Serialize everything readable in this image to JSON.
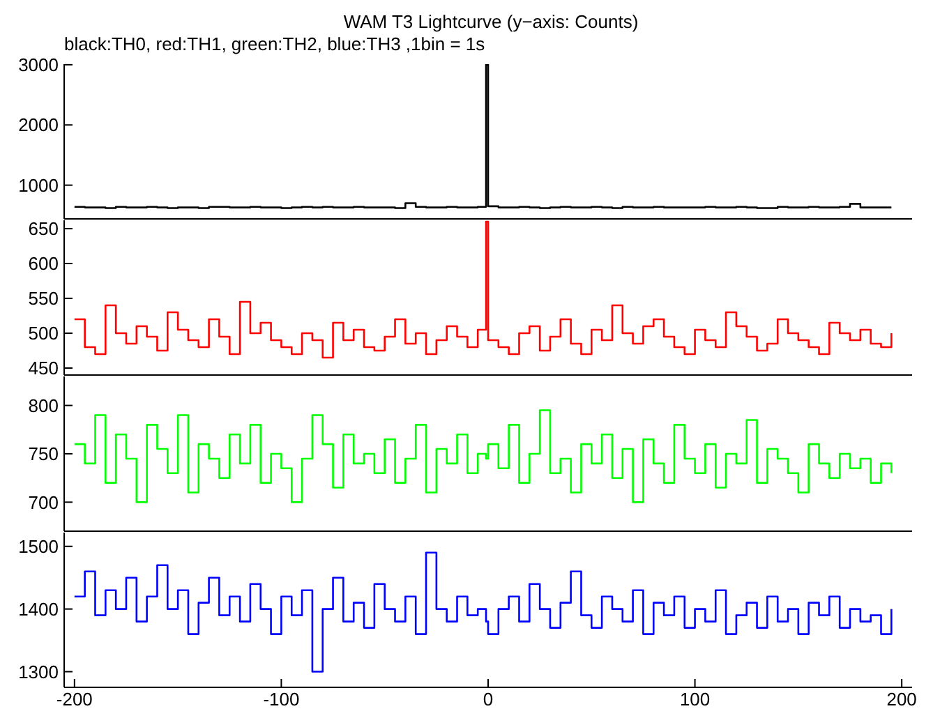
{
  "chart_data": [
    {
      "type": "step",
      "title": "WAM T3 Lightcurve (y−axis: Counts)",
      "subtitle": "black:TH0, red:TH1, green:TH2, blue:TH3 ,1bin = 1s",
      "tick_labels": "y",
      "grid": false,
      "xlim": [
        -205,
        205
      ],
      "ylim": [
        440,
        3010
      ],
      "yticks": [
        1000,
        2000,
        3000
      ],
      "x": [
        -200,
        -195,
        -190,
        -185,
        -180,
        -175,
        -170,
        -165,
        -160,
        -155,
        -150,
        -145,
        -140,
        -135,
        -130,
        -125,
        -120,
        -115,
        -110,
        -105,
        -100,
        -95,
        -90,
        -85,
        -80,
        -75,
        -70,
        -65,
        -60,
        -55,
        -50,
        -45,
        -40,
        -35,
        -30,
        -25,
        -20,
        -15,
        -10,
        -5,
        -1,
        0,
        5,
        10,
        15,
        20,
        25,
        30,
        35,
        40,
        45,
        50,
        55,
        60,
        65,
        70,
        75,
        80,
        85,
        90,
        95,
        100,
        105,
        110,
        115,
        120,
        125,
        130,
        135,
        140,
        145,
        150,
        155,
        160,
        165,
        170,
        175,
        180,
        185,
        190,
        195
      ],
      "series": [
        {
          "color": "#000000",
          "values": [
            640,
            630,
            630,
            620,
            640,
            630,
            630,
            640,
            630,
            620,
            630,
            630,
            620,
            640,
            640,
            630,
            630,
            640,
            630,
            630,
            620,
            630,
            640,
            630,
            640,
            630,
            630,
            640,
            630,
            630,
            630,
            620,
            700,
            640,
            630,
            630,
            640,
            630,
            630,
            640,
            3000,
            650,
            630,
            630,
            640,
            630,
            620,
            630,
            640,
            630,
            630,
            640,
            630,
            620,
            640,
            630,
            630,
            640,
            630,
            630,
            630,
            630,
            640,
            630,
            630,
            640,
            630,
            620,
            620,
            640,
            630,
            630,
            640,
            630,
            630,
            640,
            690,
            630,
            630,
            630,
            630
          ]
        }
      ]
    },
    {
      "type": "step",
      "tick_labels": "y",
      "grid": false,
      "xlim": [
        -205,
        205
      ],
      "ylim": [
        440,
        662
      ],
      "yticks": [
        450,
        500,
        550,
        600,
        650
      ],
      "x": [
        -200,
        -195,
        -190,
        -185,
        -180,
        -175,
        -170,
        -165,
        -160,
        -155,
        -150,
        -145,
        -140,
        -135,
        -130,
        -125,
        -120,
        -115,
        -110,
        -105,
        -100,
        -95,
        -90,
        -85,
        -80,
        -75,
        -70,
        -65,
        -60,
        -55,
        -50,
        -45,
        -40,
        -35,
        -30,
        -25,
        -20,
        -15,
        -10,
        -5,
        -1,
        0,
        5,
        10,
        15,
        20,
        25,
        30,
        35,
        40,
        45,
        50,
        55,
        60,
        65,
        70,
        75,
        80,
        85,
        90,
        95,
        100,
        105,
        110,
        115,
        120,
        125,
        130,
        135,
        140,
        145,
        150,
        155,
        160,
        165,
        170,
        175,
        180,
        185,
        190,
        195
      ],
      "series": [
        {
          "color": "#ff0000",
          "values": [
            520,
            480,
            470,
            540,
            500,
            485,
            510,
            495,
            475,
            530,
            505,
            490,
            480,
            520,
            495,
            470,
            545,
            500,
            515,
            490,
            480,
            470,
            500,
            490,
            465,
            515,
            490,
            505,
            480,
            475,
            495,
            520,
            485,
            500,
            470,
            490,
            510,
            495,
            480,
            505,
            660,
            490,
            480,
            470,
            500,
            510,
            475,
            495,
            520,
            485,
            470,
            505,
            490,
            540,
            500,
            485,
            510,
            520,
            495,
            480,
            470,
            505,
            490,
            480,
            530,
            510,
            495,
            475,
            485,
            520,
            500,
            490,
            480,
            470,
            515,
            500,
            490,
            505,
            485,
            480,
            500
          ]
        }
      ]
    },
    {
      "type": "step",
      "tick_labels": "y",
      "grid": false,
      "xlim": [
        -205,
        205
      ],
      "ylim": [
        670,
        830
      ],
      "yticks": [
        700,
        750,
        800
      ],
      "x": [
        -200,
        -195,
        -190,
        -185,
        -180,
        -175,
        -170,
        -165,
        -160,
        -155,
        -150,
        -145,
        -140,
        -135,
        -130,
        -125,
        -120,
        -115,
        -110,
        -105,
        -100,
        -95,
        -90,
        -85,
        -80,
        -75,
        -70,
        -65,
        -60,
        -55,
        -50,
        -45,
        -40,
        -35,
        -30,
        -25,
        -20,
        -15,
        -10,
        -5,
        -1,
        0,
        5,
        10,
        15,
        20,
        25,
        30,
        35,
        40,
        45,
        50,
        55,
        60,
        65,
        70,
        75,
        80,
        85,
        90,
        95,
        100,
        105,
        110,
        115,
        120,
        125,
        130,
        135,
        140,
        145,
        150,
        155,
        160,
        165,
        170,
        175,
        180,
        185,
        190,
        195
      ],
      "series": [
        {
          "color": "#00ff00",
          "values": [
            760,
            740,
            790,
            720,
            770,
            745,
            700,
            780,
            755,
            730,
            790,
            710,
            760,
            745,
            725,
            770,
            740,
            780,
            720,
            750,
            735,
            700,
            745,
            790,
            760,
            715,
            770,
            740,
            750,
            730,
            765,
            720,
            745,
            780,
            710,
            755,
            740,
            770,
            730,
            750,
            745,
            760,
            735,
            780,
            720,
            750,
            795,
            730,
            745,
            710,
            760,
            740,
            770,
            725,
            755,
            700,
            765,
            740,
            720,
            780,
            745,
            730,
            760,
            715,
            750,
            740,
            785,
            720,
            755,
            745,
            730,
            710,
            760,
            740,
            725,
            750,
            735,
            745,
            720,
            740,
            730
          ]
        }
      ]
    },
    {
      "type": "step",
      "grid": false,
      "xlim": [
        -205,
        205
      ],
      "xticks": [
        -200,
        -100,
        0,
        100,
        200
      ],
      "ylim": [
        1275,
        1522
      ],
      "yticks": [
        1300,
        1400,
        1500
      ],
      "x": [
        -200,
        -195,
        -190,
        -185,
        -180,
        -175,
        -170,
        -165,
        -160,
        -155,
        -150,
        -145,
        -140,
        -135,
        -130,
        -125,
        -120,
        -115,
        -110,
        -105,
        -100,
        -95,
        -90,
        -85,
        -80,
        -75,
        -70,
        -65,
        -60,
        -55,
        -50,
        -45,
        -40,
        -35,
        -30,
        -25,
        -20,
        -15,
        -10,
        -5,
        -1,
        0,
        5,
        10,
        15,
        20,
        25,
        30,
        35,
        40,
        45,
        50,
        55,
        60,
        65,
        70,
        75,
        80,
        85,
        90,
        95,
        100,
        105,
        110,
        115,
        120,
        125,
        130,
        135,
        140,
        145,
        150,
        155,
        160,
        165,
        170,
        175,
        180,
        185,
        190,
        195
      ],
      "series": [
        {
          "color": "#0000ff",
          "values": [
            1420,
            1460,
            1390,
            1430,
            1400,
            1450,
            1380,
            1420,
            1470,
            1400,
            1430,
            1360,
            1410,
            1450,
            1390,
            1420,
            1380,
            1440,
            1400,
            1360,
            1420,
            1390,
            1430,
            1300,
            1400,
            1450,
            1380,
            1410,
            1370,
            1440,
            1400,
            1380,
            1420,
            1360,
            1490,
            1400,
            1380,
            1420,
            1390,
            1400,
            1380,
            1360,
            1400,
            1420,
            1380,
            1440,
            1400,
            1370,
            1410,
            1460,
            1390,
            1370,
            1420,
            1400,
            1380,
            1430,
            1360,
            1410,
            1390,
            1420,
            1370,
            1400,
            1380,
            1430,
            1360,
            1390,
            1410,
            1370,
            1420,
            1380,
            1400,
            1360,
            1410,
            1390,
            1420,
            1370,
            1400,
            1380,
            1390,
            1360,
            1400
          ]
        }
      ]
    }
  ]
}
